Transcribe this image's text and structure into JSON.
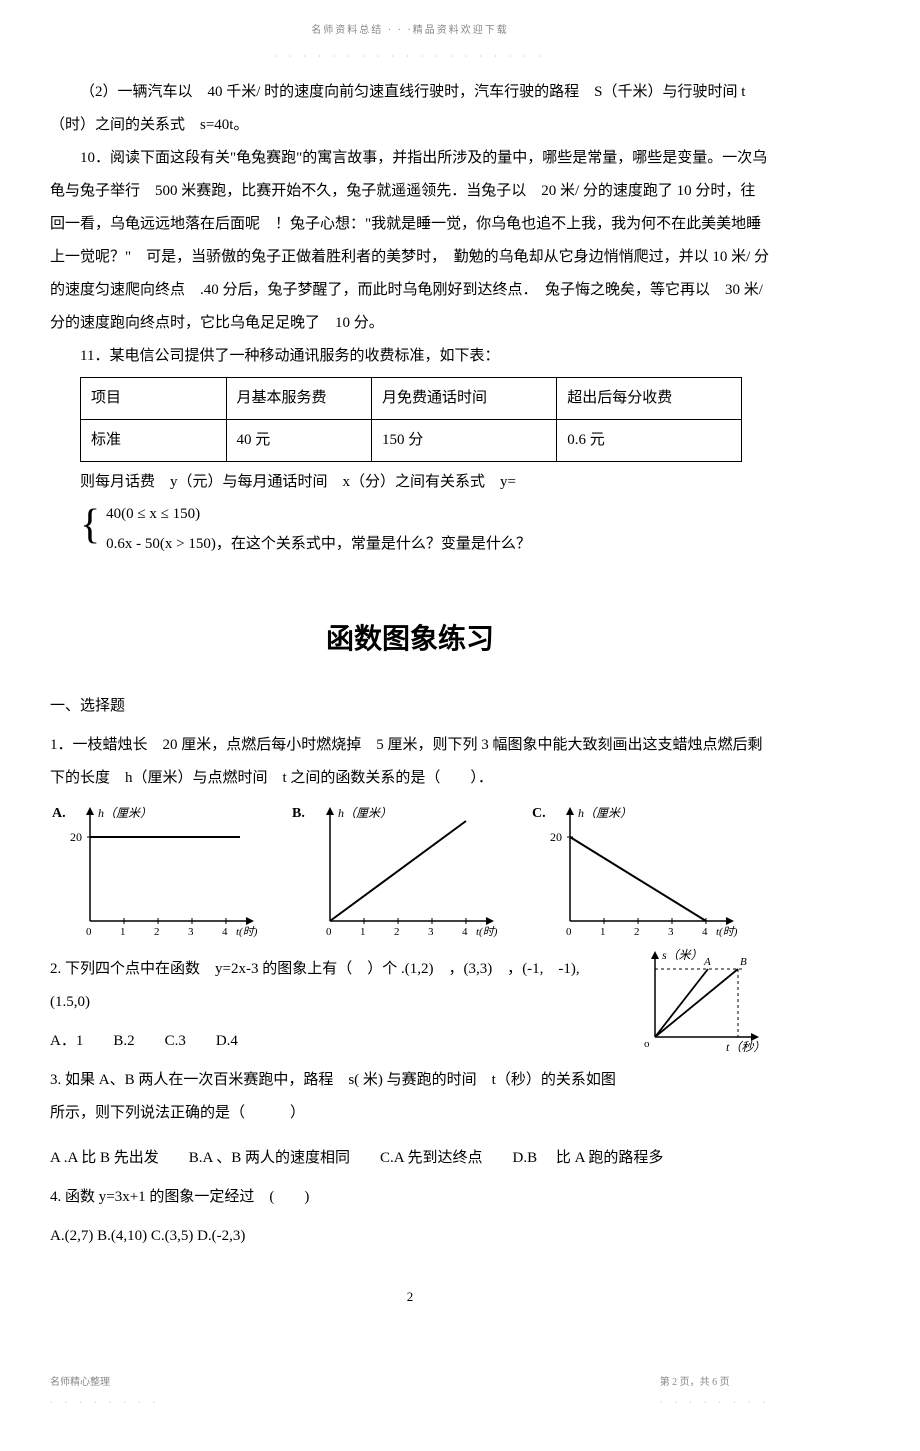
{
  "header": {
    "topline": "名师资料总结 · · ·精品资料欢迎下载",
    "dots": "· · · · · · · · · · · · · · · · · · ·"
  },
  "p9_2": "（2）一辆汽车以　40 千米/ 时的速度向前匀速直线行驶时，汽车行驶的路程　S（千米）与行驶时间 t（时）之间的关系式　s=40t。",
  "p10": "10．阅读下面这段有关\"龟兔赛跑\"的寓言故事，并指出所涉及的量中，哪些是常量，哪些是变量。一次乌龟与兔子举行　500 米赛跑，比赛开始不久，兔子就遥遥领先．当兔子以　20 米/ 分的速度跑了 10 分时，往回一看，乌龟远远地落在后面呢　！兔子心想：\"我就是睡一觉，你乌龟也追不上我，我为何不在此美美地睡上一觉呢？\"　可是，当骄傲的兔子正做着胜利者的美梦时，　勤勉的乌龟却从它身边悄悄爬过，并以 10 米/ 分的速度匀速爬向终点　.40 分后，兔子梦醒了，而此时乌龟刚好到达终点．　兔子悔之晚矣，等它再以　30 米/ 分的速度跑向终点时，它比乌龟足足晚了　10 分。",
  "p11_intro": "11．某电信公司提供了一种移动通讯服务的收费标准，如下表：",
  "fee_table": {
    "columns": [
      "项目",
      "月基本服务费",
      "月免费通话时间",
      "超出后每分收费"
    ],
    "rows": [
      [
        "标准",
        "40 元",
        "150 分",
        "0.6 元"
      ]
    ],
    "col_widths": [
      "22%",
      "22%",
      "28%",
      "28%"
    ]
  },
  "p11_after": "则每月话费　y（元）与每月通话时间　x（分）之间有关系式　y=",
  "brace1": "40(0 ≤ x ≤ 150)",
  "brace2": "0.6x - 50(x > 150)，在这个关系式中，常量是什么？变量是什么？",
  "title2": "函数图象练习",
  "sec1": "一、选择题",
  "q1": "1．一枝蜡烛长　20 厘米，点燃后每小时燃烧掉　5 厘米，则下列 3 幅图象中能大致刻画出这支蜡烛点燃后剩下的长度　h（厘米）与点燃时间　t 之间的函数关系的是（　　）．",
  "charts": {
    "A": {
      "label": "A.",
      "ylab": "h（厘米）",
      "xlab": "t(时)",
      "y20": "20",
      "xticks": [
        "0",
        "1",
        "2",
        "3",
        "4"
      ],
      "type": "flat",
      "colors": {
        "axis": "#000",
        "line": "#000"
      }
    },
    "B": {
      "label": "B.",
      "ylab": "h（厘米）",
      "xlab": "t(时)",
      "xticks": [
        "0",
        "1",
        "2",
        "3",
        "4"
      ],
      "type": "up",
      "colors": {
        "axis": "#000",
        "line": "#000"
      }
    },
    "C": {
      "label": "C.",
      "ylab": "h（厘米）",
      "xlab": "t(时)",
      "y20": "20",
      "xticks": [
        "0",
        "1",
        "2",
        "3",
        "4"
      ],
      "type": "down",
      "colors": {
        "axis": "#000",
        "line": "#000"
      }
    }
  },
  "q2": "2. 下列四个点中在函数　y=2x-3 的图象上有（　）个 .(1,2)　，(3,3)　，(-1,　-1),　(1.5,0)",
  "q2_opts": "A．1　　B.2　　C.3　　D.4",
  "q3": "3. 如果 A、B 两人在一次百米赛跑中，路程　s( 米) 与赛跑的时间　t（秒）的关系如图所示，则下列说法正确的是（　　　）",
  "q3_opts": "A .A 比 B 先出发　　B.A 、B 两人的速度相同　　C.A 先到达终点　　D.B 　比 A 跑的路程多",
  "q4": "4. 函数 y=3x+1 的图象一定经过　(　　)",
  "q4_opts": "A.(2,7) B.(4,10) C.(3,5) D.(-2,3)",
  "q3_chart": {
    "ylab": "s（米）",
    "xlab": "t（秒）",
    "A": "A",
    "B": "B",
    "o": "o",
    "colors": {
      "axis": "#000",
      "line": "#000"
    }
  },
  "page_num": "2",
  "footer": {
    "left": "名师精心整理",
    "right": "第 2 页，共 6 页",
    "dots": "· · · · · · · ·"
  }
}
